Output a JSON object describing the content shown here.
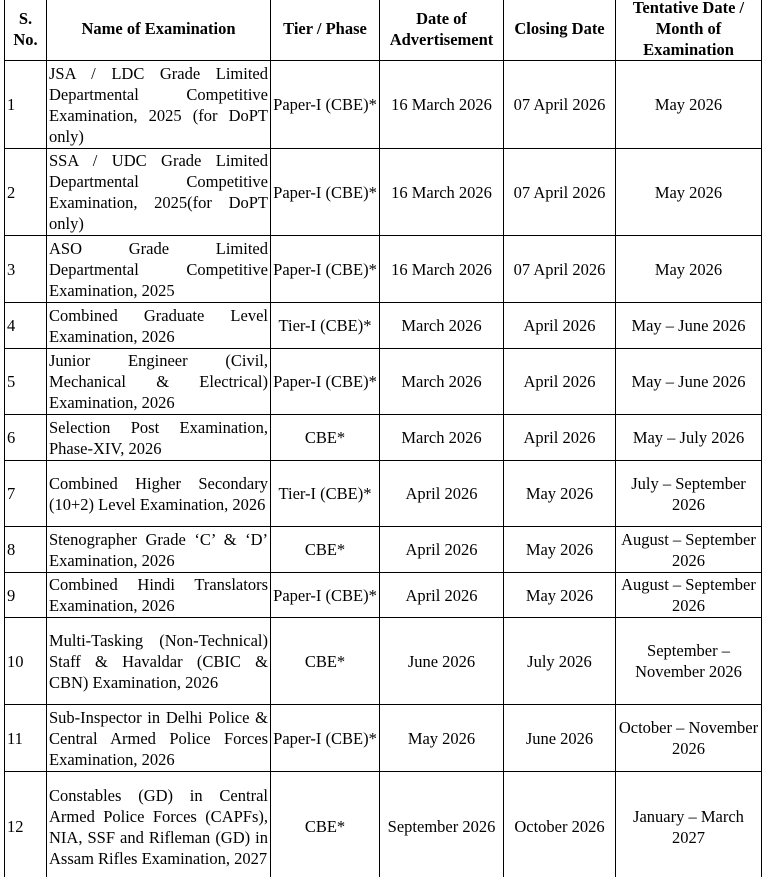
{
  "table": {
    "headers": [
      "S. No.",
      "Name of Examination",
      "Tier / Phase",
      "Date of Advertisement",
      "Closing Date",
      "Tentative Date / Month of Examination"
    ],
    "rows": [
      [
        "1",
        "JSA / LDC Grade Limited Departmental Competitive Examination, 2025 (for DoPT only)",
        "Paper-I (CBE)*",
        "16 March 2026",
        "07 April 2026",
        "May 2026"
      ],
      [
        "2",
        "SSA / UDC Grade Limited Departmental Competitive Examination, 2025(for DoPT only)",
        "Paper-I (CBE)*",
        "16 March 2026",
        "07 April 2026",
        "May 2026"
      ],
      [
        "3",
        "ASO Grade Limited Departmental Competitive Examination, 2025",
        "Paper-I (CBE)*",
        "16 March 2026",
        "07 April 2026",
        "May 2026"
      ],
      [
        "4",
        "Combined Graduate Level Examination, 2026",
        "Tier-I (CBE)*",
        "March 2026",
        "April 2026",
        "May – June 2026"
      ],
      [
        "5",
        "Junior Engineer (Civil, Mechanical & Electrical) Examination, 2026",
        "Paper-I (CBE)*",
        "March 2026",
        "April 2026",
        "May – June 2026"
      ],
      [
        "6",
        "Selection Post Examination, Phase-XIV, 2026",
        "CBE*",
        "March 2026",
        "April 2026",
        "May – July 2026"
      ],
      [
        "7",
        "Combined Higher Secondary (10+2) Level Examination, 2026",
        "Tier-I (CBE)*",
        "April 2026",
        "May 2026",
        "July – September 2026"
      ],
      [
        "8",
        "Stenographer Grade ‘C’ & ‘D’ Examination, 2026",
        "CBE*",
        "April 2026",
        "May 2026",
        "August – September 2026"
      ],
      [
        "9",
        "Combined Hindi Translators Examination, 2026",
        "Paper-I (CBE)*",
        "April 2026",
        "May 2026",
        "August – September 2026"
      ],
      [
        "10",
        "Multi-Tasking (Non-Technical) Staff & Havaldar (CBIC & CBN) Examination, 2026",
        "CBE*",
        "June 2026",
        "July 2026",
        "September – November 2026"
      ],
      [
        "11",
        "Sub-Inspector in Delhi Police & Central Armed Police Forces Examination, 2026",
        "Paper-I (CBE)*",
        "May 2026",
        "June 2026",
        "October – November 2026"
      ],
      [
        "12",
        "Constables (GD) in Central Armed Police Forces (CAPFs), NIA, SSF and Rifleman (GD) in Assam Rifles Examination, 2027",
        "CBE*",
        "September 2026",
        "October 2026",
        "January – March 2027"
      ]
    ]
  }
}
